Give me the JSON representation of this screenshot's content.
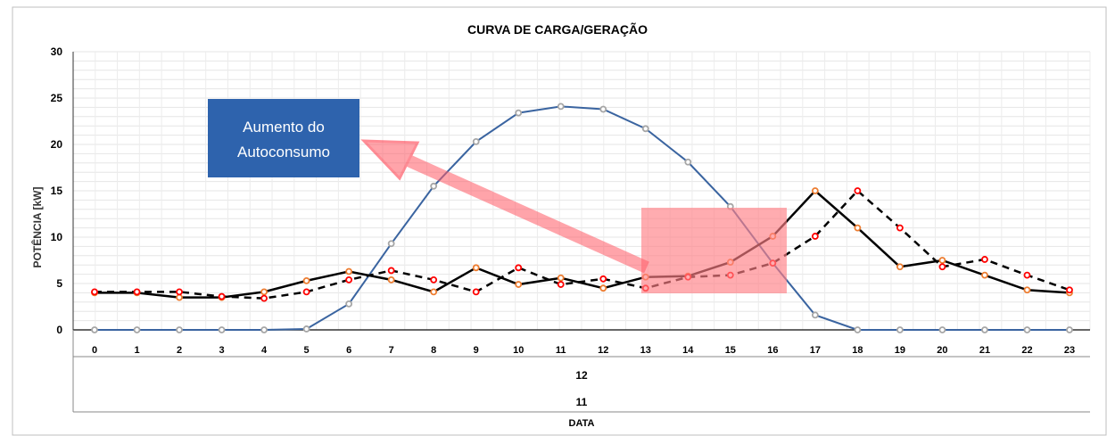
{
  "chart_data": {
    "type": "line",
    "title": "CURVA DE CARGA/GERAÇÃO",
    "ylabel": "POTÊNCIA [kW]",
    "xlabel": "DATA",
    "x_groups": [
      "12",
      "11"
    ],
    "ylim": [
      0,
      30
    ],
    "yticks": [
      0,
      5,
      10,
      15,
      20,
      25,
      30
    ],
    "grid": true,
    "x": [
      0,
      1,
      2,
      3,
      4,
      5,
      6,
      7,
      8,
      9,
      10,
      11,
      12,
      13,
      14,
      15,
      16,
      17,
      18,
      19,
      20,
      21,
      22,
      23
    ],
    "series": [
      {
        "style": "solid",
        "color": "#3a64a0",
        "marker": "#a6a6a6",
        "values": [
          0,
          0,
          0,
          0,
          0,
          0.1,
          2.8,
          9.3,
          15.5,
          20.3,
          23.4,
          24.1,
          23.8,
          21.7,
          18.1,
          13.3,
          7.2,
          1.6,
          0,
          0,
          0,
          0,
          0,
          0
        ]
      },
      {
        "style": "solid",
        "color": "#000000",
        "marker": "#ed7d31",
        "values": [
          4,
          4,
          3.5,
          3.5,
          4.1,
          5.3,
          6.3,
          5.4,
          4.1,
          6.7,
          4.9,
          5.6,
          4.5,
          5.7,
          5.8,
          7.3,
          10.1,
          15,
          11,
          6.8,
          7.5,
          5.9,
          4.3,
          4
        ]
      },
      {
        "style": "dashed",
        "color": "#000000",
        "marker": "#ff0000",
        "values": [
          4.1,
          4.1,
          4.1,
          3.6,
          3.4,
          4.1,
          5.4,
          6.4,
          5.4,
          4.1,
          6.7,
          4.9,
          5.5,
          4.5,
          5.7,
          5.9,
          7.2,
          10.1,
          15,
          11,
          6.8,
          7.6,
          5.9,
          4.3
        ]
      }
    ],
    "annotations": [
      {
        "text_lines": [
          "Aumento do",
          "Autoconsumo"
        ],
        "box_color": "#2e63ad"
      }
    ]
  }
}
